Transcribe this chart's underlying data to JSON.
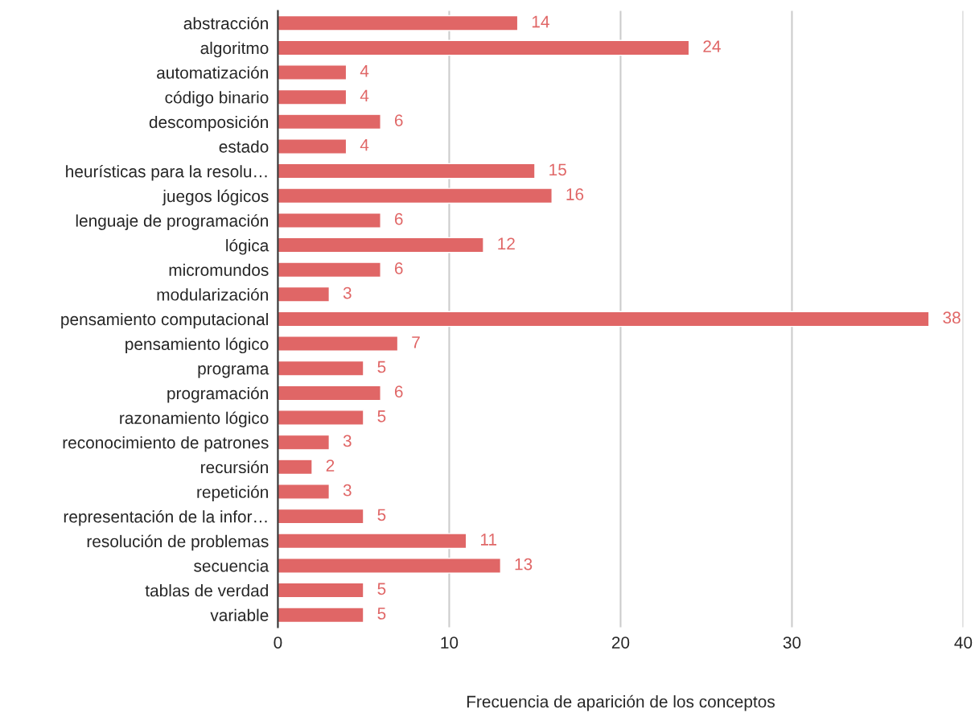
{
  "chart_data": {
    "type": "bar",
    "orientation": "horizontal",
    "xlabel": "Frecuencia de aparición de los conceptos",
    "categories": [
      "abstracción",
      "algoritmo",
      "automatización",
      "código binario",
      "descomposición",
      "estado",
      "heurísticas para la resolu…",
      "juegos lógicos",
      "lenguaje de programación",
      "lógica",
      "micromundos",
      "modularización",
      "pensamiento computacional",
      "pensamiento lógico",
      "programa",
      "programación",
      "razonamiento lógico",
      "reconocimiento de patrones",
      "recursión",
      "repetición",
      "representación de la infor…",
      "resolución de problemas",
      "secuencia",
      "tablas de verdad",
      "variable"
    ],
    "values": [
      14,
      24,
      4,
      4,
      6,
      4,
      15,
      16,
      6,
      12,
      6,
      3,
      38,
      7,
      5,
      6,
      5,
      3,
      2,
      3,
      5,
      11,
      13,
      5,
      5
    ],
    "color": "#e06666",
    "xlim": [
      0,
      40
    ],
    "xticks": [
      0,
      10,
      20,
      30,
      40
    ],
    "grid": "x",
    "data_labels": true,
    "legend": false
  }
}
